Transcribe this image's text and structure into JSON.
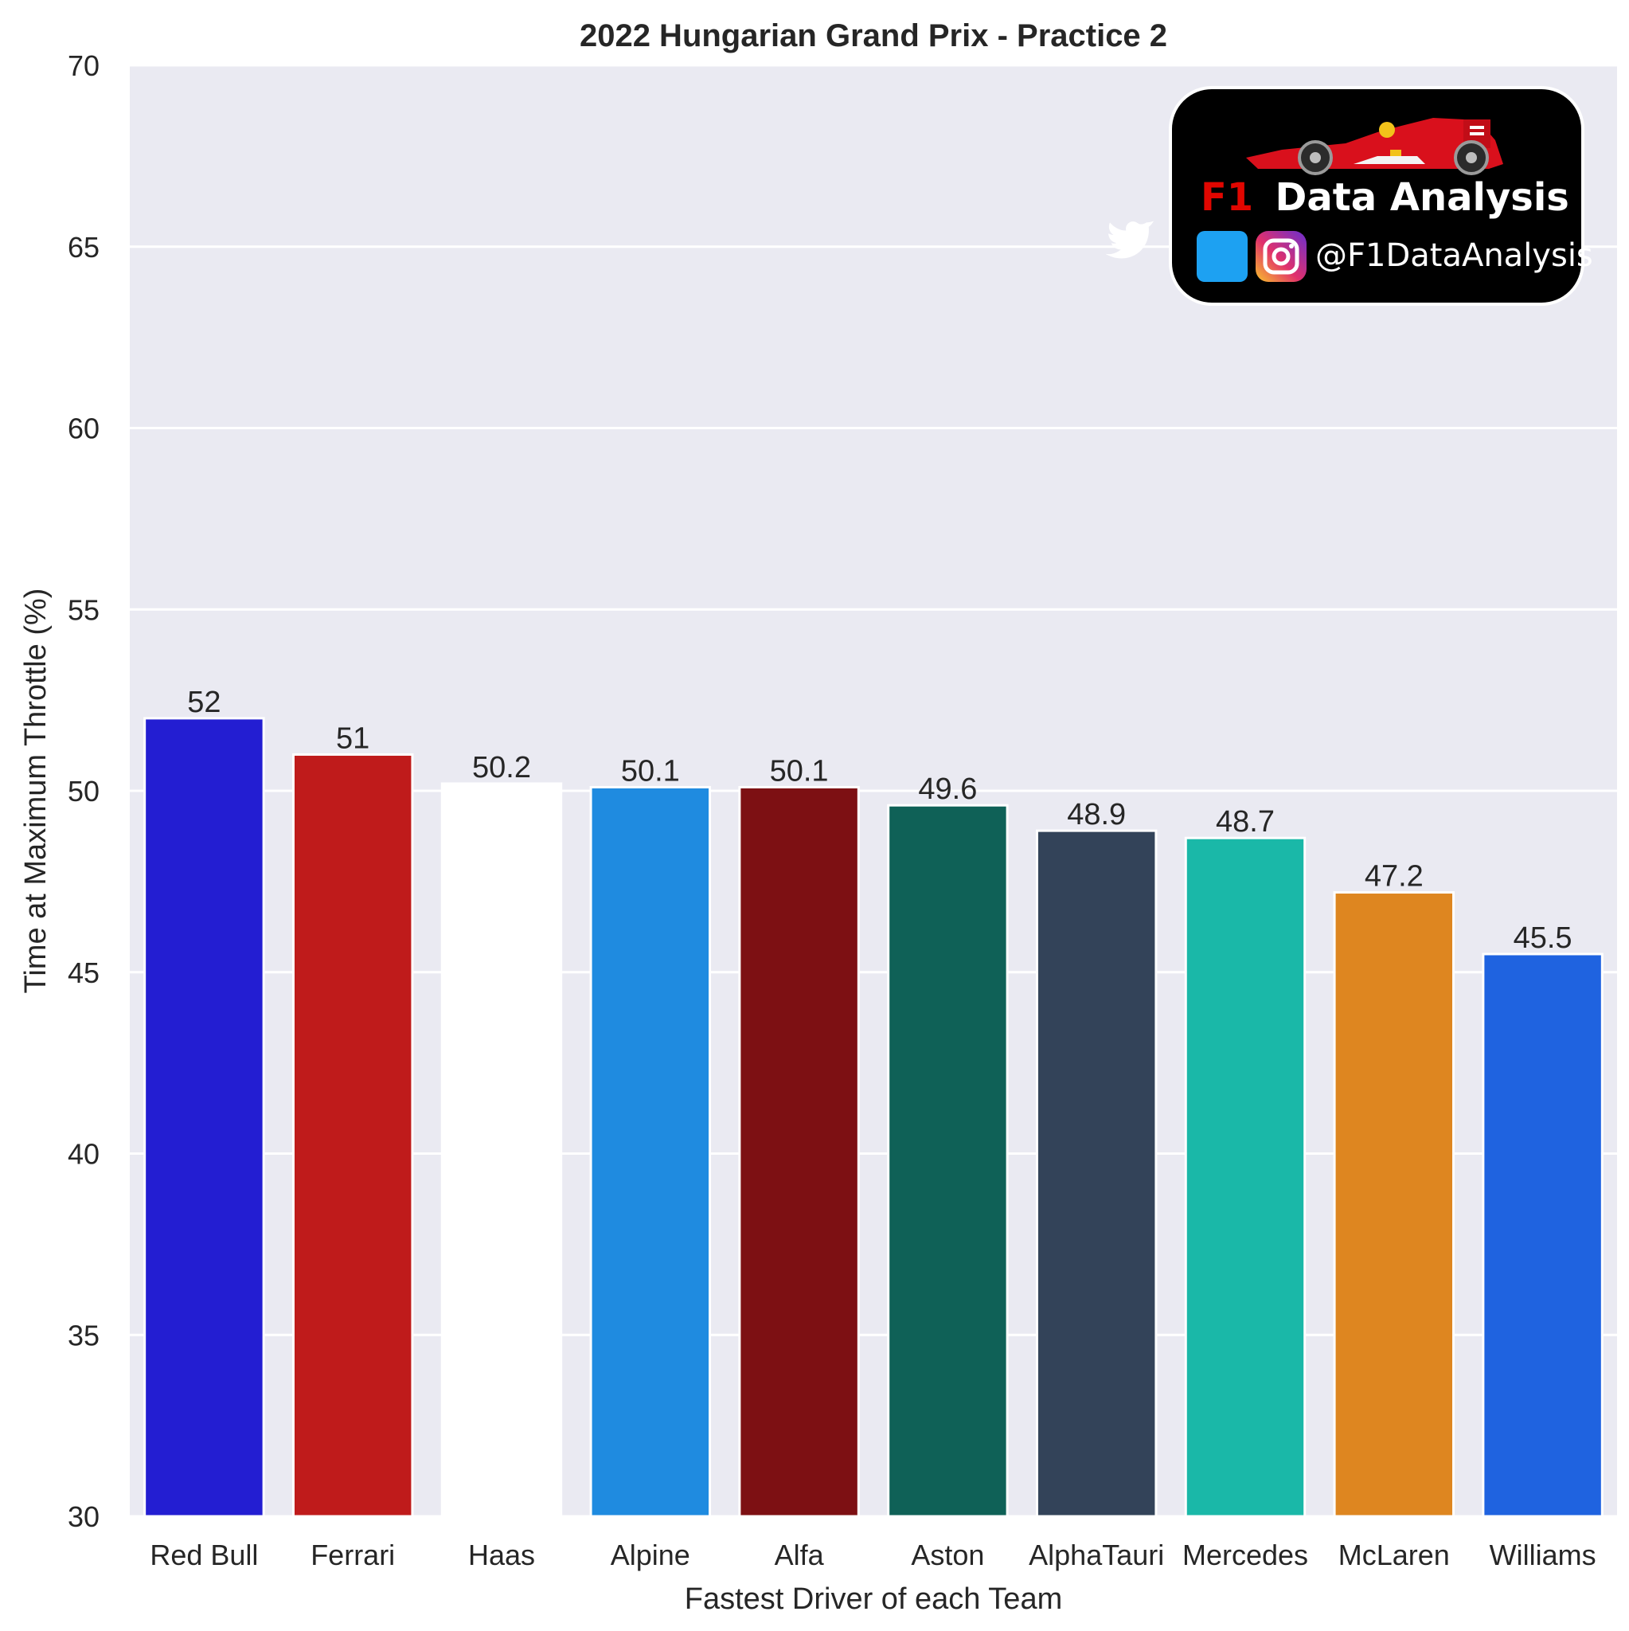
{
  "chart_data": {
    "type": "bar",
    "title": "2022 Hungarian Grand Prix - Practice 2",
    "xlabel": "Fastest Driver of each Team",
    "ylabel": "Time at Maximum Throttle (%)",
    "ylim": [
      30,
      70
    ],
    "yticks": [
      30,
      35,
      40,
      45,
      50,
      55,
      60,
      65,
      70
    ],
    "grid": true,
    "categories": [
      "Red Bull",
      "Ferrari",
      "Haas",
      "Alpine",
      "Alfa",
      "Aston",
      "AlphaTauri",
      "Mercedes",
      "McLaren",
      "Williams"
    ],
    "values": [
      52,
      51,
      50.2,
      50.1,
      50.1,
      49.6,
      48.9,
      48.7,
      47.2,
      45.5
    ],
    "value_labels": [
      "52",
      "51",
      "50.2",
      "50.1",
      "50.1",
      "49.6",
      "48.9",
      "48.7",
      "47.2",
      "45.5"
    ],
    "colors": [
      "#231ed2",
      "#bf1b1b",
      "#ffffff",
      "#1f8be0",
      "#7d1013",
      "#0f6157",
      "#334359",
      "#1ab8a8",
      "#de8620",
      "#1f63e0"
    ],
    "background": "#eaeaf2"
  },
  "watermark": {
    "brand_prefix": "F1",
    "brand_suffix": "Data Analysis",
    "handle": "@F1DataAnalysis",
    "prefix_color": "#e10600",
    "background": "#000000",
    "icons": [
      "race-car-icon",
      "twitter-icon",
      "instagram-icon"
    ]
  }
}
